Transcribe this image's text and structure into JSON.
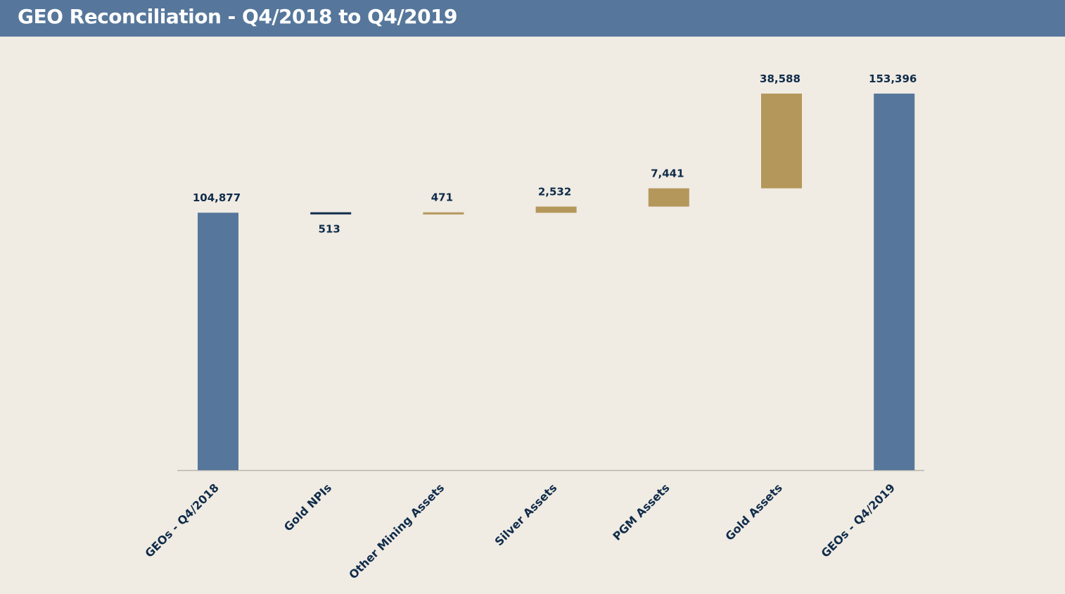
{
  "header": {
    "title": "GEO Reconciliation - Q4/2018 to Q4/2019"
  },
  "colors": {
    "total": "#56779b",
    "increase": "#b4975a",
    "decrease": "#0f2c4a",
    "header_bg": "#56779b",
    "background": "#f0ebe3",
    "label_text": "#0f2c4a"
  },
  "chart_data": {
    "type": "bar",
    "subtype": "waterfall",
    "categories": [
      "GEOs - Q4/2018",
      "Gold NPIs",
      "Other Mining Assets",
      "Silver Assets",
      "PGM Assets",
      "Gold Assets",
      "GEOs - Q4/2019"
    ],
    "values": [
      104877,
      -513,
      471,
      2532,
      7441,
      38588,
      153396
    ],
    "labels": [
      "104,877",
      "513",
      "471",
      "2,532",
      "7,441",
      "38,588",
      "153,396"
    ],
    "kinds": [
      "total",
      "decrease",
      "increase",
      "increase",
      "increase",
      "increase",
      "total"
    ],
    "title": "",
    "xlabel": "",
    "ylabel": "",
    "ylim": [
      0,
      153396
    ],
    "grid": false,
    "legend": "none"
  }
}
